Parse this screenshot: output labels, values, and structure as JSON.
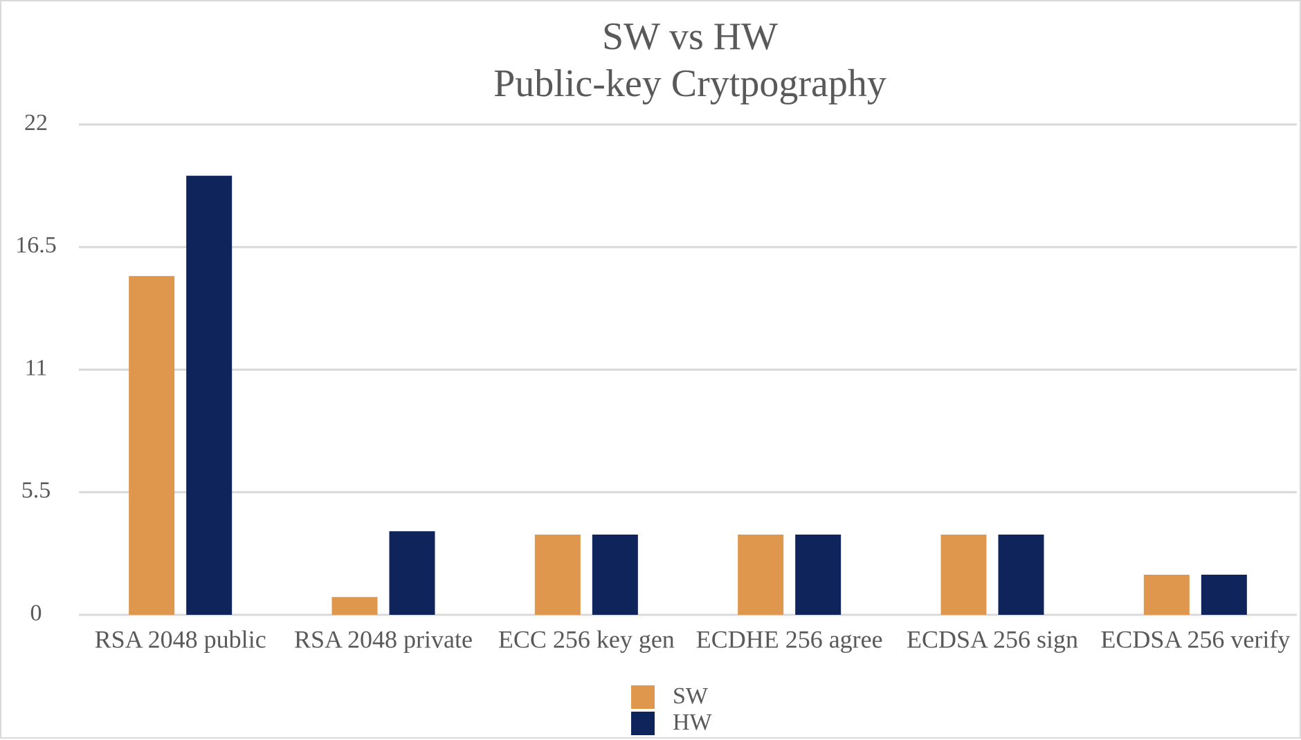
{
  "chart_data": {
    "type": "bar",
    "title": [
      "SW vs HW",
      "Public-key Crytpography"
    ],
    "categories": [
      "RSA 2048 public",
      "RSA 2048 private",
      "ECC 256 key gen",
      "ECDHE 256 agree",
      "ECDSA 256 sign",
      "ECDSA 256 verify"
    ],
    "series": [
      {
        "name": "SW",
        "color": "#df974e",
        "values": [
          15.2,
          0.8,
          3.6,
          3.6,
          3.6,
          1.8
        ]
      },
      {
        "name": "HW",
        "color": "#0f245a",
        "values": [
          19.7,
          3.75,
          3.6,
          3.6,
          3.6,
          1.8
        ]
      }
    ],
    "y_ticks": [
      "0",
      "5.5",
      "11",
      "16.5",
      "22"
    ],
    "ylim": [
      0,
      22
    ],
    "xlabel": "",
    "ylabel": "",
    "grid": true,
    "legend_position": "bottom"
  }
}
